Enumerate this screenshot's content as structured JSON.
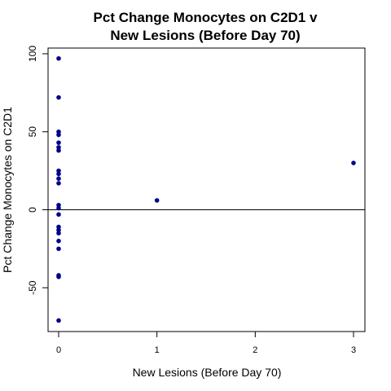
{
  "chart_data": {
    "type": "scatter",
    "title": [
      "Pct Change Monocytes on C2D1 v",
      "New Lesions (Before Day 70)"
    ],
    "xlabel": "New Lesions (Before Day 70)",
    "ylabel": "Pct Change Monocytes on C2D1",
    "xlim": [
      0,
      3
    ],
    "ylim": [
      -75,
      100
    ],
    "xticks": [
      "0",
      "1",
      "2",
      "3"
    ],
    "yticks": [
      "-50",
      "0",
      "50",
      "100"
    ],
    "reference_line": 0,
    "point_color": "#00008B",
    "points": [
      {
        "x": 0,
        "y": 97
      },
      {
        "x": 0,
        "y": 72
      },
      {
        "x": 0,
        "y": 50
      },
      {
        "x": 0,
        "y": 48
      },
      {
        "x": 0,
        "y": 43
      },
      {
        "x": 0,
        "y": 40
      },
      {
        "x": 0,
        "y": 38
      },
      {
        "x": 0,
        "y": 25
      },
      {
        "x": 0,
        "y": 23
      },
      {
        "x": 0,
        "y": 20
      },
      {
        "x": 0,
        "y": 17
      },
      {
        "x": 0,
        "y": 3
      },
      {
        "x": 0,
        "y": 1
      },
      {
        "x": 0,
        "y": -3
      },
      {
        "x": 0,
        "y": -11
      },
      {
        "x": 0,
        "y": -13
      },
      {
        "x": 0,
        "y": -15
      },
      {
        "x": 0,
        "y": -20
      },
      {
        "x": 0,
        "y": -25
      },
      {
        "x": 0,
        "y": -42
      },
      {
        "x": 0,
        "y": -43
      },
      {
        "x": 0,
        "y": -71
      },
      {
        "x": 1,
        "y": 6
      },
      {
        "x": 3,
        "y": 30
      }
    ]
  }
}
